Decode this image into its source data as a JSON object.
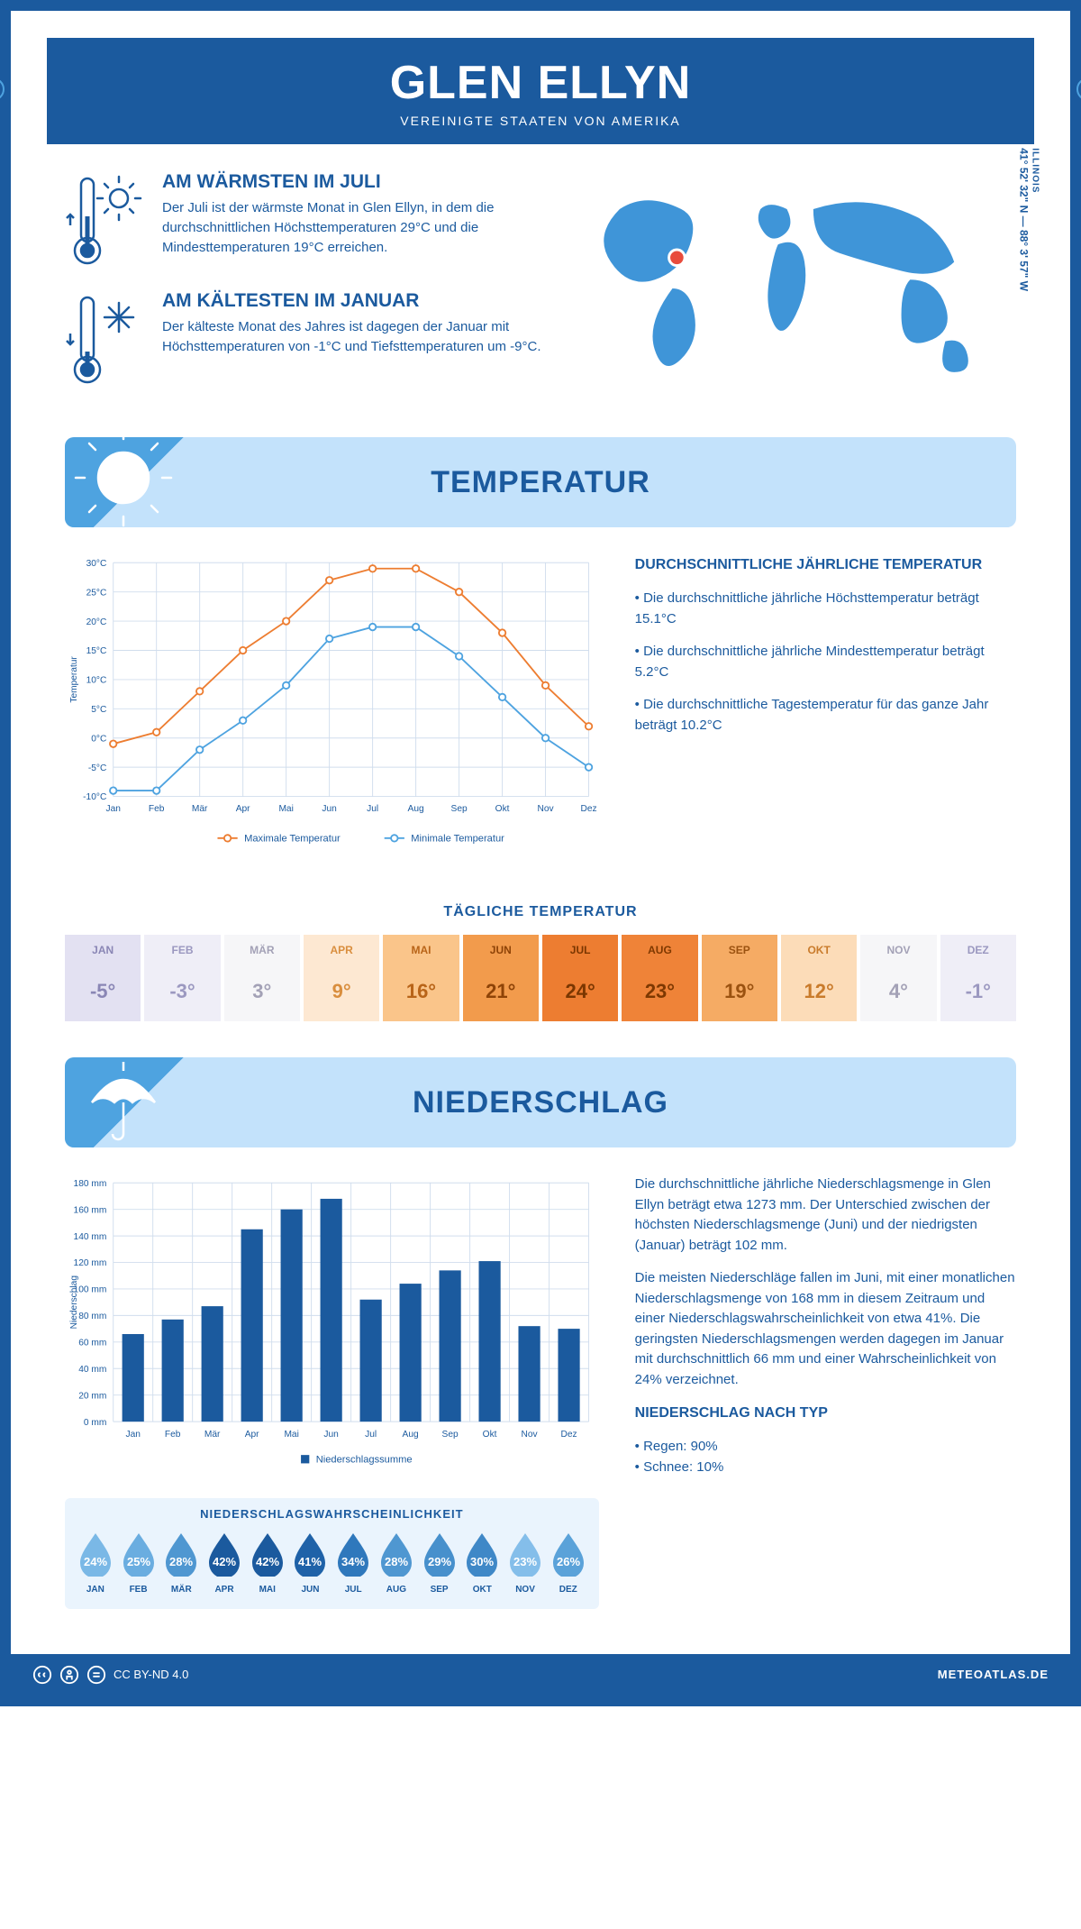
{
  "colors": {
    "primary": "#1b5a9e",
    "light_blue": "#c3e2fb",
    "bg_blue": "#eaf4fd",
    "accent": "#4ea3e0",
    "orange": "#ed7d31",
    "line_blue": "#4ea3e0",
    "marker_red": "#e84c3d",
    "grid": "#d0dded"
  },
  "header": {
    "title": "GLEN ELLYN",
    "subtitle": "VEREINIGTE STAATEN VON AMERIKA"
  },
  "coords": {
    "line": "41° 52' 32\" N — 88° 3' 57\" W",
    "state": "ILLINOIS"
  },
  "facts": {
    "warm": {
      "title": "AM WÄRMSTEN IM JULI",
      "body": "Der Juli ist der wärmste Monat in Glen Ellyn, in dem die durchschnittlichen Höchsttemperaturen 29°C und die Mindesttemperaturen 19°C erreichen."
    },
    "cold": {
      "title": "AM KÄLTESTEN IM JANUAR",
      "body": "Der kälteste Monat des Jahres ist dagegen der Januar mit Höchsttemperaturen von -1°C und Tiefsttemperaturen um -9°C."
    }
  },
  "sections": {
    "temperature": "TEMPERATUR",
    "precipitation": "NIEDERSCHLAG"
  },
  "months": [
    "Jan",
    "Feb",
    "Mär",
    "Apr",
    "Mai",
    "Jun",
    "Jul",
    "Aug",
    "Sep",
    "Okt",
    "Nov",
    "Dez"
  ],
  "months_upper": [
    "JAN",
    "FEB",
    "MÄR",
    "APR",
    "MAI",
    "JUN",
    "JUL",
    "AUG",
    "SEP",
    "OKT",
    "NOV",
    "DEZ"
  ],
  "temperature_chart": {
    "type": "line",
    "yaxis_title": "Temperatur",
    "ylim": [
      -10,
      30
    ],
    "ytick_step": 5,
    "series": [
      {
        "name": "Maximale Temperatur",
        "color": "#ed7d31",
        "marker": "circle",
        "values": [
          -1,
          1,
          8,
          15,
          20,
          27,
          29,
          29,
          25,
          18,
          9,
          2
        ]
      },
      {
        "name": "Minimale Temperatur",
        "color": "#4ea3e0",
        "marker": "circle",
        "values": [
          -9,
          -9,
          -2,
          3,
          9,
          17,
          19,
          19,
          14,
          7,
          0,
          -5
        ]
      }
    ],
    "grid_color": "#d0dded",
    "background_color": "#ffffff",
    "line_width": 2,
    "marker_size": 4
  },
  "temp_stats": {
    "title": "DURCHSCHNITTLICHE JÄHRLICHE TEMPERATUR",
    "bullets": [
      "• Die durchschnittliche jährliche Höchsttemperatur beträgt 15.1°C",
      "• Die durchschnittliche jährliche Mindesttemperatur beträgt 5.2°C",
      "• Die durchschnittliche Tagestemperatur für das ganze Jahr beträgt 10.2°C"
    ]
  },
  "daily_temp": {
    "title": "TÄGLICHE TEMPERATUR",
    "cells": [
      {
        "mon": "JAN",
        "val": "-5°",
        "bg": "#e3e1f2",
        "fg": "#8a86b5"
      },
      {
        "mon": "FEB",
        "val": "-3°",
        "bg": "#efeef7",
        "fg": "#9b98c0"
      },
      {
        "mon": "MÄR",
        "val": "3°",
        "bg": "#f6f6f8",
        "fg": "#a3a1b6"
      },
      {
        "mon": "APR",
        "val": "9°",
        "bg": "#fde8d2",
        "fg": "#d98e3e"
      },
      {
        "mon": "MAI",
        "val": "16°",
        "bg": "#fac58a",
        "fg": "#b86418"
      },
      {
        "mon": "JUN",
        "val": "21°",
        "bg": "#f29b4c",
        "fg": "#8e4307"
      },
      {
        "mon": "JUL",
        "val": "24°",
        "bg": "#ed7d31",
        "fg": "#7a3600"
      },
      {
        "mon": "AUG",
        "val": "23°",
        "bg": "#ef8338",
        "fg": "#7e3800"
      },
      {
        "mon": "SEP",
        "val": "19°",
        "bg": "#f5ab64",
        "fg": "#9b5210"
      },
      {
        "mon": "OKT",
        "val": "12°",
        "bg": "#fcdcb8",
        "fg": "#c97b2b"
      },
      {
        "mon": "NOV",
        "val": "4°",
        "bg": "#f6f6f8",
        "fg": "#a3a1b6"
      },
      {
        "mon": "DEZ",
        "val": "-1°",
        "bg": "#efeef7",
        "fg": "#9b98c0"
      }
    ]
  },
  "precip_chart": {
    "type": "bar",
    "yaxis_title": "Niederschlag",
    "ylim": [
      0,
      180
    ],
    "ytick_step": 20,
    "bar_color": "#1b5a9e",
    "bar_width": 0.55,
    "grid_color": "#d0dded",
    "legend": "Niederschlagssumme",
    "values": [
      66,
      77,
      87,
      145,
      160,
      168,
      92,
      104,
      114,
      121,
      72,
      70
    ]
  },
  "precip_text": {
    "p1": "Die durchschnittliche jährliche Niederschlagsmenge in Glen Ellyn beträgt etwa 1273 mm. Der Unterschied zwischen der höchsten Niederschlagsmenge (Juni) und der niedrigsten (Januar) beträgt 102 mm.",
    "p2": "Die meisten Niederschläge fallen im Juni, mit einer monatlichen Niederschlagsmenge von 168 mm in diesem Zeitraum und einer Niederschlagswahrscheinlichkeit von etwa 41%. Die geringsten Niederschlagsmengen werden dagegen im Januar mit durchschnittlich 66 mm und einer Wahrscheinlichkeit von 24% verzeichnet.",
    "type_title": "NIEDERSCHLAG NACH TYP",
    "type_bullets": [
      "• Regen: 90%",
      "• Schnee: 10%"
    ]
  },
  "precip_prob": {
    "title": "NIEDERSCHLAGSWAHRSCHEINLICHKEIT",
    "cells": [
      {
        "pct": "24%",
        "color": "#7ab8e6"
      },
      {
        "pct": "25%",
        "color": "#6aade0"
      },
      {
        "pct": "28%",
        "color": "#4f97d1"
      },
      {
        "pct": "42%",
        "color": "#1b5a9e"
      },
      {
        "pct": "42%",
        "color": "#1b5a9e"
      },
      {
        "pct": "41%",
        "color": "#1f62a8"
      },
      {
        "pct": "34%",
        "color": "#2f78bc"
      },
      {
        "pct": "28%",
        "color": "#4f97d1"
      },
      {
        "pct": "29%",
        "color": "#4790cc"
      },
      {
        "pct": "30%",
        "color": "#3f88c7"
      },
      {
        "pct": "23%",
        "color": "#84beea"
      },
      {
        "pct": "26%",
        "color": "#5aa2d9"
      }
    ]
  },
  "footer": {
    "license": "CC BY-ND 4.0",
    "site": "METEOATLAS.DE"
  }
}
